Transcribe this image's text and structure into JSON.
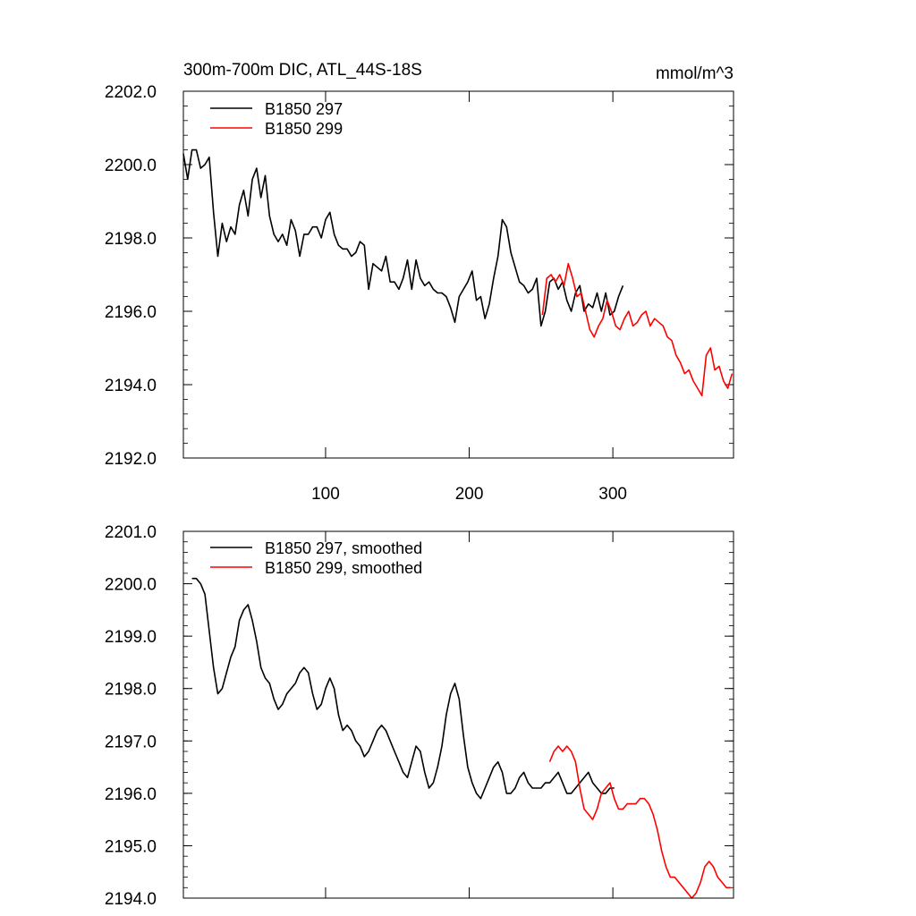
{
  "chart_data": [
    {
      "type": "line",
      "title": "300m-700m DIC, ATL_44S-18S",
      "units": "mmol/m^3",
      "xlabel": "",
      "ylabel": "",
      "xlim": [
        1,
        384
      ],
      "ylim": [
        2192.0,
        2202.0
      ],
      "xticks": [
        100,
        200,
        300
      ],
      "xtick_labels": [
        "100",
        "200",
        "300"
      ],
      "yticks": [
        2192.0,
        2194.0,
        2196.0,
        2198.0,
        2200.0,
        2202.0
      ],
      "ytick_labels": [
        "2192.0",
        "2194.0",
        "2196.0",
        "2198.0",
        "2200.0",
        "2202.0"
      ],
      "legend_position": "top-left",
      "series": [
        {
          "name": "B1850 297",
          "color": "#000000",
          "x": [
            1,
            4,
            7,
            10,
            13,
            16,
            19,
            22,
            25,
            28,
            31,
            34,
            37,
            40,
            43,
            46,
            49,
            52,
            55,
            58,
            61,
            64,
            67,
            70,
            73,
            76,
            79,
            82,
            85,
            88,
            91,
            94,
            97,
            100,
            103,
            106,
            109,
            112,
            115,
            118,
            121,
            124,
            127,
            130,
            133,
            136,
            139,
            142,
            145,
            148,
            151,
            154,
            157,
            160,
            163,
            166,
            169,
            172,
            175,
            178,
            181,
            184,
            187,
            190,
            193,
            196,
            199,
            202,
            205,
            208,
            211,
            214,
            217,
            220,
            223,
            226,
            229,
            232,
            235,
            238,
            241,
            244,
            247,
            250,
            253,
            256,
            259,
            262,
            265,
            268,
            271,
            274,
            277,
            280,
            283,
            286,
            289,
            292,
            295,
            298,
            301,
            304,
            307
          ],
          "values": [
            2200.3,
            2199.6,
            2200.4,
            2200.4,
            2199.9,
            2200.0,
            2200.2,
            2198.7,
            2197.5,
            2198.4,
            2197.9,
            2198.3,
            2198.1,
            2198.9,
            2199.3,
            2198.6,
            2199.6,
            2199.9,
            2199.1,
            2199.7,
            2198.6,
            2198.1,
            2197.9,
            2198.1,
            2197.8,
            2198.5,
            2198.2,
            2197.5,
            2198.1,
            2198.1,
            2198.3,
            2198.3,
            2198.0,
            2198.5,
            2198.7,
            2198.1,
            2197.8,
            2197.7,
            2197.7,
            2197.5,
            2197.6,
            2197.9,
            2197.8,
            2196.6,
            2197.3,
            2197.2,
            2197.1,
            2197.5,
            2196.8,
            2196.8,
            2196.6,
            2196.9,
            2197.4,
            2196.6,
            2197.4,
            2196.9,
            2196.7,
            2196.8,
            2196.6,
            2196.5,
            2196.5,
            2196.4,
            2196.1,
            2195.7,
            2196.4,
            2196.6,
            2196.8,
            2197.1,
            2196.3,
            2196.4,
            2195.8,
            2196.2,
            2196.9,
            2197.5,
            2198.5,
            2198.3,
            2197.6,
            2197.2,
            2196.8,
            2196.7,
            2196.5,
            2196.6,
            2196.9,
            2195.6,
            2196.0,
            2196.8,
            2196.9,
            2196.6,
            2196.8,
            2196.3,
            2196.0,
            2196.5,
            2196.7,
            2196.0,
            2196.2,
            2196.1,
            2196.5,
            2196.0,
            2196.5,
            2195.9,
            2196.0,
            2196.4,
            2196.7
          ]
        },
        {
          "name": "B1850 299",
          "color": "#ff0000",
          "x": [
            251,
            254,
            257,
            260,
            263,
            266,
            269,
            272,
            275,
            278,
            281,
            284,
            287,
            290,
            293,
            296,
            299,
            302,
            305,
            308,
            311,
            314,
            317,
            320,
            323,
            326,
            329,
            332,
            335,
            338,
            341,
            344,
            347,
            350,
            353,
            356,
            359,
            362,
            365,
            368,
            371,
            374,
            377,
            380,
            383
          ],
          "values": [
            2195.9,
            2196.9,
            2197.0,
            2196.8,
            2197.0,
            2196.7,
            2197.3,
            2196.9,
            2196.4,
            2196.5,
            2196.0,
            2195.5,
            2195.3,
            2195.6,
            2195.8,
            2196.3,
            2196.0,
            2195.6,
            2195.5,
            2195.8,
            2196.0,
            2195.6,
            2195.7,
            2195.9,
            2196.0,
            2195.6,
            2195.8,
            2195.7,
            2195.6,
            2195.3,
            2195.2,
            2194.8,
            2194.6,
            2194.3,
            2194.4,
            2194.1,
            2193.9,
            2193.7,
            2194.8,
            2195.0,
            2194.4,
            2194.5,
            2194.1,
            2193.9,
            2194.3
          ]
        }
      ]
    },
    {
      "type": "line",
      "title": "",
      "xlabel": "",
      "ylabel": "",
      "xlim": [
        1,
        384
      ],
      "ylim": [
        2194.0,
        2201.0
      ],
      "xticks": [
        100,
        200,
        300
      ],
      "xtick_labels": [
        "",
        "",
        ""
      ],
      "yticks": [
        2194.0,
        2195.0,
        2196.0,
        2197.0,
        2198.0,
        2199.0,
        2200.0,
        2201.0
      ],
      "ytick_labels": [
        "2194.0",
        "2195.0",
        "2196.0",
        "2197.0",
        "2198.0",
        "2199.0",
        "2200.0",
        "2201.0"
      ],
      "legend_position": "top-left",
      "series": [
        {
          "name": "B1850 297, smoothed",
          "color": "#000000",
          "x": [
            7,
            10,
            13,
            16,
            19,
            22,
            25,
            28,
            31,
            34,
            37,
            40,
            43,
            46,
            49,
            52,
            55,
            58,
            61,
            64,
            67,
            70,
            73,
            76,
            79,
            82,
            85,
            88,
            91,
            94,
            97,
            100,
            103,
            106,
            109,
            112,
            115,
            118,
            121,
            124,
            127,
            130,
            133,
            136,
            139,
            142,
            145,
            148,
            151,
            154,
            157,
            160,
            163,
            166,
            169,
            172,
            175,
            178,
            181,
            184,
            187,
            190,
            193,
            196,
            199,
            202,
            205,
            208,
            211,
            214,
            217,
            220,
            223,
            226,
            229,
            232,
            235,
            238,
            241,
            244,
            247,
            250,
            253,
            256,
            259,
            262,
            265,
            268,
            271,
            274,
            277,
            280,
            283,
            286,
            289,
            292,
            295,
            298,
            301
          ],
          "values": [
            2200.1,
            2200.1,
            2200.0,
            2199.8,
            2199.1,
            2198.4,
            2197.9,
            2198.0,
            2198.3,
            2198.6,
            2198.8,
            2199.3,
            2199.5,
            2199.6,
            2199.3,
            2198.9,
            2198.4,
            2198.2,
            2198.1,
            2197.8,
            2197.6,
            2197.7,
            2197.9,
            2198.0,
            2198.1,
            2198.3,
            2198.4,
            2198.3,
            2197.9,
            2197.6,
            2197.7,
            2198.0,
            2198.2,
            2198.0,
            2197.5,
            2197.2,
            2197.3,
            2197.2,
            2197.0,
            2196.9,
            2196.7,
            2196.8,
            2197.0,
            2197.2,
            2197.3,
            2197.2,
            2197.0,
            2196.8,
            2196.6,
            2196.4,
            2196.3,
            2196.6,
            2196.9,
            2196.8,
            2196.4,
            2196.1,
            2196.2,
            2196.5,
            2196.9,
            2197.5,
            2197.9,
            2198.1,
            2197.8,
            2197.1,
            2196.5,
            2196.2,
            2196.0,
            2195.9,
            2196.1,
            2196.3,
            2196.5,
            2196.6,
            2196.4,
            2196.0,
            2196.0,
            2196.1,
            2196.3,
            2196.4,
            2196.2,
            2196.1,
            2196.1,
            2196.1,
            2196.2,
            2196.2,
            2196.3,
            2196.4,
            2196.2,
            2196.0,
            2196.0,
            2196.1,
            2196.2,
            2196.3,
            2196.4,
            2196.2,
            2196.1,
            2196.0,
            2196.0,
            2196.1,
            2196.1
          ]
        },
        {
          "name": "B1850 299, smoothed",
          "color": "#ff0000",
          "x": [
            256,
            259,
            262,
            265,
            268,
            271,
            274,
            277,
            280,
            283,
            286,
            289,
            292,
            295,
            298,
            301,
            304,
            307,
            310,
            313,
            316,
            319,
            322,
            325,
            328,
            331,
            334,
            337,
            340,
            343,
            346,
            349,
            352,
            355,
            358,
            361,
            364,
            367,
            370,
            373,
            376,
            379,
            382
          ],
          "values": [
            2196.6,
            2196.8,
            2196.9,
            2196.8,
            2196.9,
            2196.8,
            2196.6,
            2196.1,
            2195.7,
            2195.6,
            2195.5,
            2195.7,
            2196.0,
            2196.1,
            2196.2,
            2195.9,
            2195.7,
            2195.7,
            2195.8,
            2195.8,
            2195.8,
            2195.9,
            2195.9,
            2195.8,
            2195.6,
            2195.3,
            2194.9,
            2194.6,
            2194.4,
            2194.4,
            2194.3,
            2194.2,
            2194.1,
            2194.0,
            2194.1,
            2194.3,
            2194.6,
            2194.7,
            2194.6,
            2194.4,
            2194.3,
            2194.2,
            2194.2
          ]
        }
      ]
    }
  ]
}
